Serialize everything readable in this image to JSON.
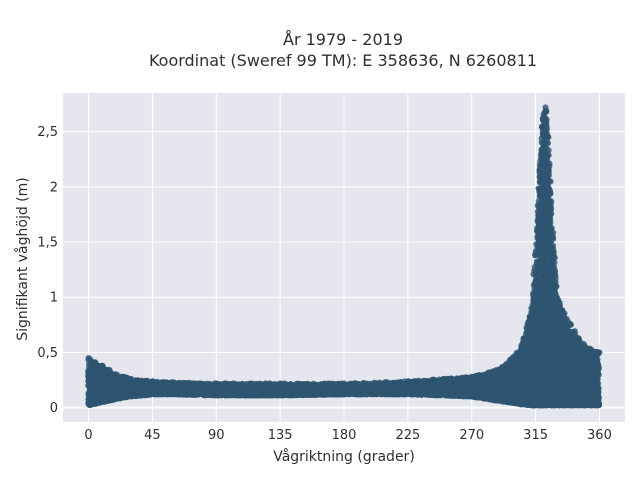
{
  "chart_data": {
    "type": "scatter",
    "title_line1": "År 1979 - 2019",
    "title_line2": "Koordinat (Sweref 99 TM): E 358636, N 6260811",
    "xlabel": "Vågriktning (grader)",
    "ylabel": "Signifikant våghöjd (m)",
    "xlim": [
      -18,
      378
    ],
    "ylim": [
      -0.13,
      2.85
    ],
    "xticks": [
      0,
      45,
      90,
      135,
      180,
      225,
      270,
      315,
      360
    ],
    "xtick_labels": [
      "0",
      "45",
      "90",
      "135",
      "180",
      "225",
      "270",
      "315",
      "360"
    ],
    "yticks": [
      0,
      0.5,
      1,
      1.5,
      2,
      2.5
    ],
    "ytick_labels": [
      "0",
      "0,5",
      "1",
      "1,5",
      "2",
      "2,5"
    ],
    "grid": true,
    "marker_color": "#2e5570",
    "envelope": {
      "x": [
        0,
        10,
        20,
        30,
        45,
        60,
        90,
        135,
        180,
        225,
        250,
        270,
        285,
        295,
        305,
        312,
        316,
        318,
        320,
        322,
        324,
        326,
        330,
        340,
        350,
        360
      ],
      "y_max": [
        0.45,
        0.38,
        0.3,
        0.26,
        0.24,
        0.23,
        0.22,
        0.22,
        0.22,
        0.24,
        0.26,
        0.28,
        0.33,
        0.4,
        0.55,
        0.9,
        1.6,
        2.2,
        2.62,
        2.72,
        2.45,
        1.8,
        1.0,
        0.75,
        0.55,
        0.5
      ],
      "y_min": [
        0.02,
        0.05,
        0.08,
        0.1,
        0.12,
        0.12,
        0.11,
        0.11,
        0.12,
        0.12,
        0.11,
        0.1,
        0.07,
        0.05,
        0.03,
        0.02,
        0.02,
        0.02,
        0.02,
        0.02,
        0.02,
        0.02,
        0.02,
        0.02,
        0.02,
        0.02
      ]
    }
  }
}
